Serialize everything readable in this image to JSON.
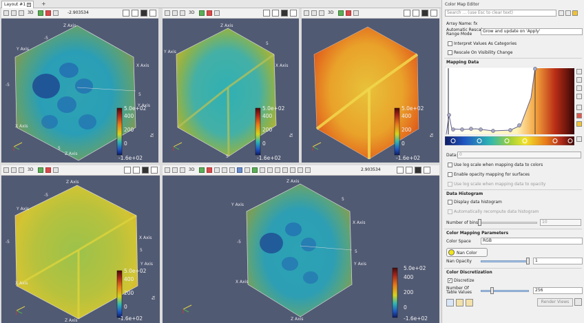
{
  "layout": {
    "tab_label": "Layout #1",
    "tab_close": "x",
    "add_tab": "+"
  },
  "axes": {
    "z": "Z Axis",
    "y": "Y Axis",
    "x": "X Axis",
    "tick_pos": "5",
    "tick_neg": "-5"
  },
  "views": [
    {
      "threed": "3D",
      "camera": "-2.903534",
      "scalar_title": "fx",
      "ticks": [
        "5.0e+02",
        "400",
        "200",
        "0",
        "-1.6e+02"
      ]
    },
    {
      "threed": "3D",
      "camera": "",
      "scalar_title": "fx",
      "ticks": [
        "5.0e+02",
        "400",
        "200",
        "0",
        "-1.6e+02"
      ]
    },
    {
      "threed": "3D",
      "camera": "",
      "scalar_title": "fx",
      "ticks": [
        "5.0e+02",
        "400",
        "200",
        "0",
        "-1.6e+02"
      ]
    },
    {
      "threed": "3D",
      "camera": "",
      "scalar_title": "fx",
      "ticks": [
        "5.0e+02",
        "400",
        "200",
        "0",
        "-1.6e+02"
      ]
    },
    {
      "threed": "3D",
      "camera": "2.903534",
      "scalar_title": "fx",
      "ticks": [
        "5.0e+02",
        "400",
        "200",
        "0",
        "-1.6e+02"
      ]
    }
  ],
  "colormap": {
    "panel_title": "Color Map Editor",
    "search_placeholder": "Search ... (use Esc to clear text)",
    "array_name": "Array Name: fx",
    "auto_rescale_label": "Automatic Rescale Range Mode",
    "auto_rescale_value": "Grow and update on 'Apply'",
    "interpret_categories": "Interpret Values As Categories",
    "rescale_on_visibility": "Rescale On Visibility Change",
    "mapping_data": "Mapping Data",
    "data_label": "Data:",
    "data_value": "0",
    "use_log_scale": "Use log scale when mapping data to colors",
    "enable_opacity": "Enable opacity mapping for surfaces",
    "use_log_opacity": "Use log scale when mapping data to opacity",
    "data_histogram": "Data Histogram",
    "display_histogram": "Display data histogram",
    "auto_recompute": "Automatically recompute data histogram",
    "number_of_bins_label": "Number of bins:",
    "number_of_bins_value": "10",
    "color_mapping_parameters": "Color Mapping Parameters",
    "color_space_label": "Color Space",
    "color_space_value": "RGB",
    "nan_color": "Nan Color",
    "nan_opacity_label": "Nan Opacity",
    "nan_opacity_value": "1",
    "color_discretization": "Color Discretization",
    "discretize": "Discretize",
    "discretize_checked": true,
    "number_of_table_values_label": "Number Of Table Values",
    "number_of_table_values": "256",
    "render_views": "Render Views"
  },
  "colors": {
    "render_bg": "#515a73",
    "nan": "#f1e51a"
  }
}
